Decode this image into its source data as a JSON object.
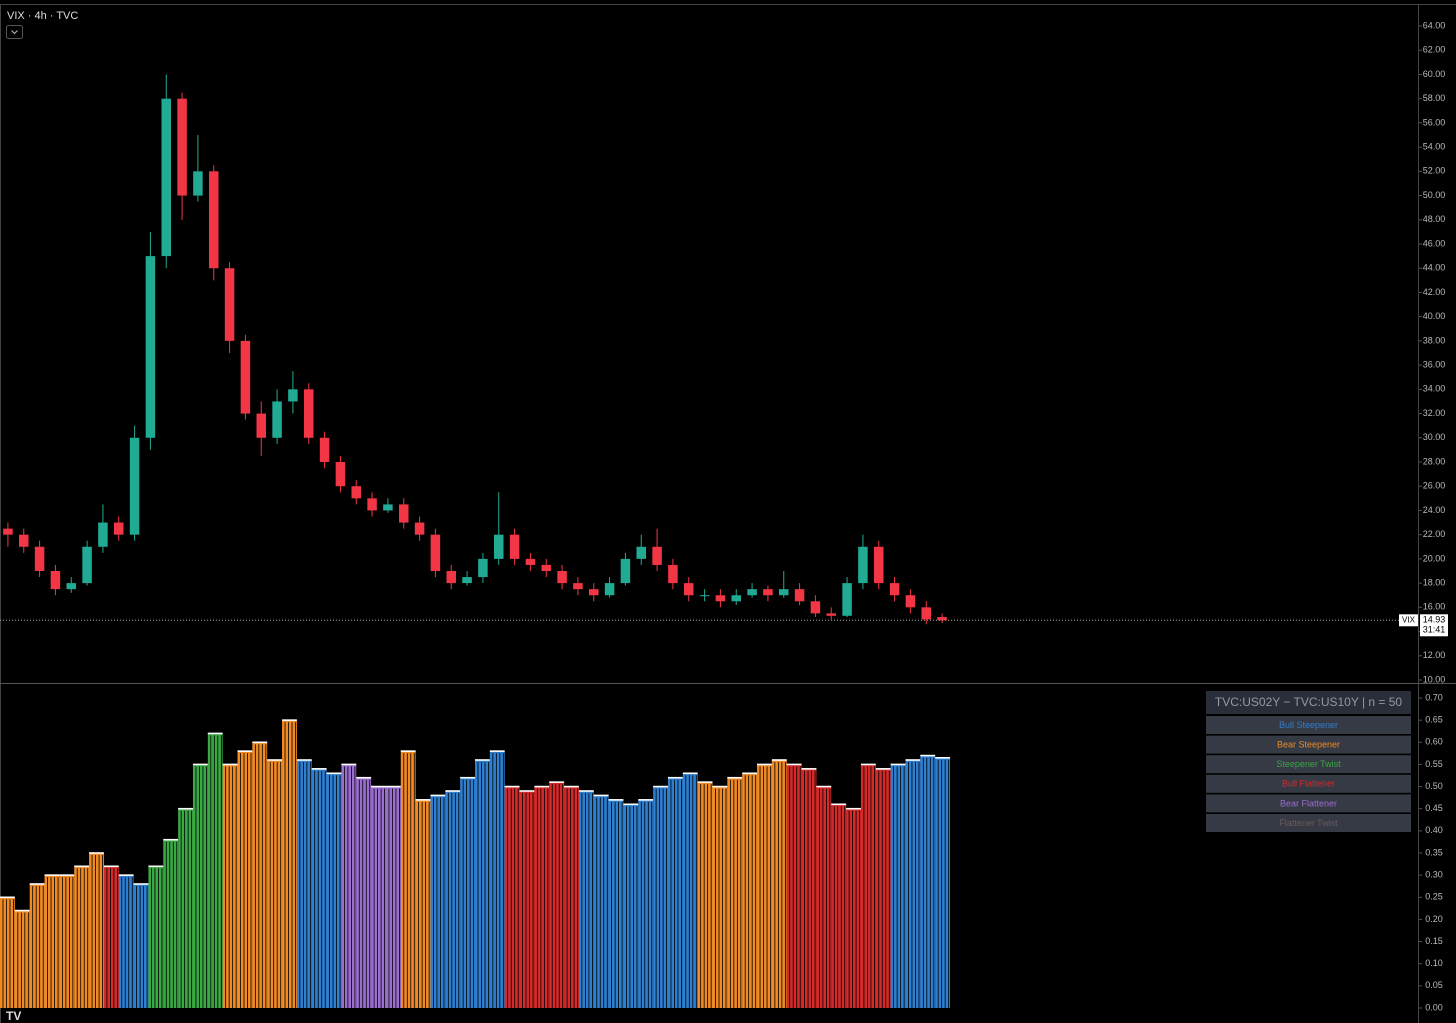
{
  "chart_data": [
    {
      "type": "candlestick",
      "title": "VIX · 4h · TVC",
      "open": [
        22.5,
        22,
        21,
        19,
        17.5,
        18,
        21,
        23,
        22,
        30,
        45,
        58,
        50,
        52,
        44,
        38,
        32,
        30,
        33,
        34,
        30,
        28,
        26,
        25,
        24,
        24.5,
        23,
        22,
        19,
        18,
        18.5,
        20,
        22,
        20,
        19.5,
        19,
        18,
        17.5,
        17,
        18,
        20,
        21,
        19.5,
        18,
        17,
        17,
        16.5,
        17,
        17.5,
        17,
        17.5,
        16.5,
        15.5,
        15.3,
        18,
        21,
        18,
        17,
        16,
        15.2
      ],
      "high": [
        23,
        22.5,
        21.5,
        19.5,
        18.5,
        21.5,
        24.5,
        23.5,
        31,
        47,
        60,
        58.5,
        55,
        52.5,
        44.5,
        38.5,
        33,
        34,
        35.5,
        34.5,
        30.5,
        28.5,
        26.5,
        25.5,
        25,
        25,
        23.5,
        22.5,
        19.5,
        19,
        20.5,
        25.5,
        22.5,
        20.5,
        20,
        19.5,
        18.5,
        18,
        18.5,
        20.5,
        22,
        22.5,
        20,
        18.5,
        17.5,
        17.5,
        17.5,
        18,
        17.8,
        19,
        18,
        17,
        16,
        18.5,
        22,
        21.5,
        18.5,
        17.5,
        16.5,
        15.5
      ],
      "low": [
        21,
        20.5,
        18.5,
        17,
        17.2,
        17.8,
        20.5,
        21.5,
        21.5,
        29,
        44,
        48,
        49.5,
        43,
        37,
        31.5,
        28.5,
        29.5,
        32,
        29.5,
        27.5,
        25.5,
        24.5,
        23.5,
        23.8,
        22.5,
        21.5,
        18.5,
        17.5,
        17.8,
        18,
        19.5,
        19.5,
        19,
        18.5,
        17.5,
        17,
        16.5,
        16.8,
        17.8,
        19.5,
        19,
        17.5,
        16.5,
        16.5,
        16,
        16.2,
        16.8,
        16.5,
        16.8,
        16.2,
        15.2,
        15,
        15.2,
        17.5,
        17.5,
        16.5,
        15.5,
        14.6,
        14.7
      ],
      "close": [
        22,
        21,
        19,
        17.5,
        18,
        21,
        23,
        22,
        30,
        45,
        58,
        50,
        52,
        44,
        38,
        32,
        30,
        33,
        34,
        30,
        28,
        26,
        25,
        24,
        24.5,
        23,
        22,
        19,
        18,
        18.5,
        20,
        22,
        20,
        19.5,
        19,
        18,
        17.5,
        17,
        18,
        20,
        21,
        19.5,
        18,
        17,
        17,
        16.5,
        17,
        17.5,
        17,
        17.5,
        16.5,
        15.5,
        15.3,
        18,
        21,
        18,
        17,
        16,
        15,
        14.93
      ],
      "up_color": "#22ab94",
      "down_color": "#f23645",
      "ylim": [
        10,
        64
      ],
      "yticks": [
        {
          "value": 10,
          "label": "10.00"
        },
        {
          "value": 12,
          "label": "12.00"
        },
        {
          "value": 14,
          "label": "14.00"
        },
        {
          "value": 16,
          "label": "16.00"
        },
        {
          "value": 18,
          "label": "18.00"
        },
        {
          "value": 20,
          "label": "20.00"
        },
        {
          "value": 22,
          "label": "22.00"
        },
        {
          "value": 24,
          "label": "24.00"
        },
        {
          "value": 26,
          "label": "26.00"
        },
        {
          "value": 28,
          "label": "28.00"
        },
        {
          "value": 30,
          "label": "30.00"
        },
        {
          "value": 32,
          "label": "32.00"
        },
        {
          "value": 34,
          "label": "34.00"
        },
        {
          "value": 36,
          "label": "36.00"
        },
        {
          "value": 38,
          "label": "38.00"
        },
        {
          "value": 40,
          "label": "40.00"
        },
        {
          "value": 42,
          "label": "42.00"
        },
        {
          "value": 44,
          "label": "44.00"
        },
        {
          "value": 46,
          "label": "46.00"
        },
        {
          "value": 48,
          "label": "48.00"
        },
        {
          "value": 50,
          "label": "50.00"
        },
        {
          "value": 52,
          "label": "52.00"
        },
        {
          "value": 54,
          "label": "54.00"
        },
        {
          "value": 56,
          "label": "56.00"
        },
        {
          "value": 58,
          "label": "58.00"
        },
        {
          "value": 60,
          "label": "60.00"
        },
        {
          "value": 62,
          "label": "62.00"
        },
        {
          "value": 64,
          "label": "64.00"
        }
      ],
      "price_label": {
        "symbol": "VIX",
        "value": 14.93,
        "countdown": "31:41"
      }
    },
    {
      "type": "bar",
      "legend_title": "TVC:US02Y − TVC:US10Y | n = 50",
      "ylim": [
        0,
        0.7
      ],
      "yticks": [
        {
          "value": 0,
          "label": "0.00"
        },
        {
          "value": 0.05,
          "label": "0.05"
        },
        {
          "value": 0.1,
          "label": "0.10"
        },
        {
          "value": 0.15,
          "label": "0.15"
        },
        {
          "value": 0.2,
          "label": "0.20"
        },
        {
          "value": 0.25,
          "label": "0.25"
        },
        {
          "value": 0.3,
          "label": "0.30"
        },
        {
          "value": 0.35,
          "label": "0.35"
        },
        {
          "value": 0.4,
          "label": "0.40"
        },
        {
          "value": 0.45,
          "label": "0.45"
        },
        {
          "value": 0.5,
          "label": "0.50"
        },
        {
          "value": 0.55,
          "label": "0.55"
        },
        {
          "value": 0.6,
          "label": "0.60"
        },
        {
          "value": 0.65,
          "label": "0.65"
        },
        {
          "value": 0.7,
          "label": "0.70"
        }
      ],
      "series": [
        {
          "name": "Bull Steepener",
          "color": "#2e7fd0",
          "values": [
            null,
            null,
            null,
            null,
            null,
            null,
            null,
            null,
            0.3,
            0.28,
            null,
            null,
            null,
            null,
            null,
            null,
            null,
            null,
            null,
            null,
            0.56,
            0.54,
            0.53,
            null,
            null,
            null,
            null,
            null,
            null,
            0.48,
            0.49,
            0.52,
            0.56,
            0.58,
            null,
            null,
            null,
            null,
            null,
            0.49,
            0.48,
            0.47,
            0.46,
            0.47,
            0.5,
            0.52,
            0.53,
            null,
            null,
            null,
            null,
            null,
            null,
            null,
            null,
            null,
            null,
            null,
            null,
            null,
            0.55,
            0.56,
            0.57,
            0.565
          ]
        },
        {
          "name": "Bear Steepener",
          "color": "#f08a24",
          "values": [
            0.25,
            0.22,
            0.28,
            0.3,
            0.3,
            0.32,
            0.35,
            null,
            null,
            null,
            null,
            null,
            null,
            null,
            null,
            0.55,
            0.58,
            0.6,
            0.56,
            0.65,
            null,
            null,
            null,
            null,
            null,
            null,
            null,
            0.58,
            0.47,
            null,
            null,
            null,
            null,
            null,
            null,
            null,
            null,
            null,
            null,
            null,
            null,
            null,
            null,
            null,
            null,
            null,
            null,
            0.51,
            0.5,
            0.52,
            0.53,
            0.55,
            0.56,
            null,
            null,
            null,
            null,
            null,
            null,
            null,
            null,
            null,
            null,
            null
          ]
        },
        {
          "name": "Steepener Twist",
          "color": "#3aa843",
          "values": [
            null,
            null,
            null,
            null,
            null,
            null,
            null,
            null,
            null,
            null,
            0.32,
            0.38,
            0.45,
            0.55,
            0.62,
            null,
            null,
            null,
            null,
            null,
            null,
            null,
            null,
            null,
            null,
            null,
            null,
            null,
            null,
            null,
            null,
            null,
            null,
            null,
            null,
            null,
            null,
            null,
            null,
            null,
            null,
            null,
            null,
            null,
            null,
            null,
            null,
            null,
            null,
            null,
            null,
            null,
            null,
            null,
            null,
            null,
            null,
            null,
            null,
            null,
            null,
            null,
            null,
            null
          ]
        },
        {
          "name": "Bull Flattener",
          "color": "#d42a2a",
          "values": [
            null,
            null,
            null,
            null,
            null,
            null,
            null,
            0.32,
            null,
            null,
            null,
            null,
            null,
            null,
            null,
            null,
            null,
            null,
            null,
            null,
            null,
            null,
            null,
            null,
            null,
            null,
            null,
            null,
            null,
            null,
            null,
            null,
            null,
            null,
            0.5,
            0.49,
            0.5,
            0.51,
            0.5,
            null,
            null,
            null,
            null,
            null,
            null,
            null,
            null,
            null,
            null,
            null,
            null,
            null,
            null,
            0.55,
            0.54,
            0.5,
            0.46,
            0.45,
            0.55,
            0.54,
            null,
            null,
            null,
            null
          ]
        },
        {
          "name": "Bear Flattener",
          "color": "#9b6fd0",
          "values": [
            null,
            null,
            null,
            null,
            null,
            null,
            null,
            null,
            null,
            null,
            null,
            null,
            null,
            null,
            null,
            null,
            null,
            null,
            null,
            null,
            null,
            null,
            null,
            0.55,
            0.52,
            0.5,
            0.5,
            null,
            null,
            null,
            null,
            null,
            null,
            null,
            null,
            null,
            null,
            null,
            null,
            null,
            null,
            null,
            null,
            null,
            null,
            null,
            null,
            null,
            null,
            null,
            null,
            null,
            null,
            null,
            null,
            null,
            null,
            null,
            null,
            null,
            null,
            null,
            null,
            null
          ]
        },
        {
          "name": "Flattener Twist",
          "color": "#6b5a5a",
          "values": [
            null,
            null,
            null,
            null,
            null,
            null,
            null,
            null,
            null,
            null,
            null,
            null,
            null,
            null,
            null,
            null,
            null,
            null,
            null,
            null,
            null,
            null,
            null,
            null,
            null,
            null,
            null,
            null,
            null,
            null,
            null,
            null,
            null,
            null,
            null,
            null,
            null,
            null,
            null,
            null,
            null,
            null,
            null,
            null,
            null,
            null,
            null,
            null,
            null,
            null,
            null,
            null,
            null,
            null,
            null,
            null,
            null,
            null,
            null,
            null,
            null,
            null,
            null,
            null
          ]
        }
      ]
    }
  ]
}
